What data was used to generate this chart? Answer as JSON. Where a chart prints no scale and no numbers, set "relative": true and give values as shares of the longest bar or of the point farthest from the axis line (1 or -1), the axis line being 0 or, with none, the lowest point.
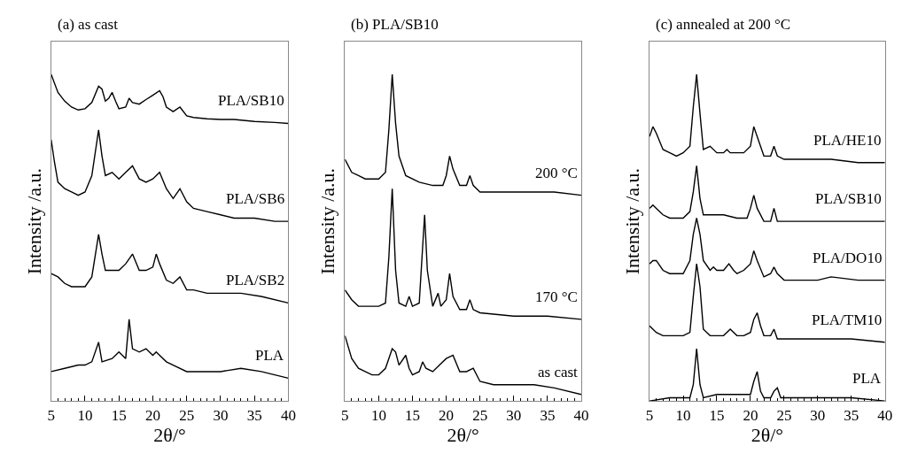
{
  "chart_data": [
    {
      "type": "line",
      "title": "(a) as cast",
      "xlabel": "2θ/°",
      "ylabel": "Intensity /a.u.",
      "relative": true,
      "xlim": [
        5,
        40
      ],
      "xticks": [
        5,
        10,
        15,
        20,
        25,
        30,
        35,
        40
      ],
      "tick_labels": "x",
      "series": [
        {
          "name": "PLA/SB10",
          "color": "#000000",
          "x": [
            5,
            6,
            7,
            8,
            9,
            10,
            11,
            12,
            12.5,
            13,
            13.5,
            14,
            14.5,
            15,
            16,
            16.5,
            17,
            18,
            19,
            20,
            21,
            21.5,
            22,
            23,
            24,
            25,
            26,
            28,
            30,
            32,
            35,
            38,
            40
          ],
          "values": [
            1.0,
            0.945,
            0.918,
            0.9,
            0.891,
            0.895,
            0.914,
            0.964,
            0.955,
            0.918,
            0.927,
            0.945,
            0.918,
            0.895,
            0.9,
            0.927,
            0.914,
            0.909,
            0.923,
            0.936,
            0.95,
            0.932,
            0.9,
            0.886,
            0.9,
            0.873,
            0.868,
            0.864,
            0.862,
            0.862,
            0.856,
            0.853,
            0.85
          ]
        },
        {
          "name": "PLA/SB6",
          "color": "#000000",
          "x": [
            5,
            5.5,
            6,
            7,
            8,
            9,
            10,
            11,
            11.5,
            12,
            12.5,
            13,
            14,
            15,
            16,
            17,
            18,
            19,
            20,
            21,
            22,
            23,
            24,
            25,
            26,
            28,
            30,
            32,
            35,
            38,
            40
          ],
          "values": [
            0.8,
            0.73,
            0.67,
            0.65,
            0.64,
            0.63,
            0.64,
            0.69,
            0.76,
            0.83,
            0.75,
            0.69,
            0.7,
            0.68,
            0.7,
            0.72,
            0.68,
            0.67,
            0.68,
            0.7,
            0.65,
            0.62,
            0.65,
            0.61,
            0.59,
            0.58,
            0.57,
            0.56,
            0.56,
            0.55,
            0.55
          ]
        },
        {
          "name": "PLA/SB2",
          "color": "#000000",
          "x": [
            5,
            6,
            7,
            8,
            9,
            10,
            11,
            12,
            12.5,
            13,
            14,
            15,
            16,
            17,
            18,
            19,
            20,
            20.5,
            21,
            22,
            23,
            24,
            25,
            26,
            28,
            30,
            33,
            36,
            40
          ],
          "values": [
            0.39,
            0.38,
            0.36,
            0.35,
            0.35,
            0.35,
            0.38,
            0.51,
            0.45,
            0.4,
            0.4,
            0.4,
            0.42,
            0.45,
            0.4,
            0.4,
            0.41,
            0.45,
            0.42,
            0.37,
            0.36,
            0.38,
            0.34,
            0.34,
            0.33,
            0.33,
            0.33,
            0.32,
            0.3
          ]
        },
        {
          "name": "PLA",
          "color": "#000000",
          "x": [
            5,
            7,
            9,
            10,
            11,
            12,
            12.5,
            14,
            15,
            16,
            16.5,
            17,
            18,
            19,
            20,
            20.5,
            21,
            22,
            23,
            25,
            27,
            30,
            33,
            36,
            40
          ],
          "values": [
            0.09,
            0.1,
            0.11,
            0.11,
            0.12,
            0.18,
            0.12,
            0.13,
            0.15,
            0.13,
            0.25,
            0.16,
            0.15,
            0.16,
            0.14,
            0.15,
            0.14,
            0.12,
            0.11,
            0.09,
            0.09,
            0.09,
            0.1,
            0.09,
            0.07
          ]
        }
      ]
    },
    {
      "type": "line",
      "title": "(b) PLA/SB10",
      "xlabel": "2θ/°",
      "ylabel": "Intensity /a.u.",
      "relative": true,
      "xlim": [
        5,
        40
      ],
      "xticks": [
        5,
        10,
        15,
        20,
        25,
        30,
        35,
        40
      ],
      "tick_labels": "x",
      "series": [
        {
          "name": "200 °C",
          "color": "#000000",
          "x": [
            5,
            6,
            7,
            8,
            9,
            10,
            11,
            11.5,
            12,
            12.5,
            13,
            14,
            16,
            18,
            19.5,
            20,
            20.5,
            21,
            22,
            23,
            23.5,
            24,
            25,
            28,
            32,
            36,
            40
          ],
          "values": [
            0.74,
            0.7,
            0.69,
            0.68,
            0.68,
            0.68,
            0.7,
            0.83,
            1.0,
            0.85,
            0.75,
            0.69,
            0.67,
            0.66,
            0.66,
            0.69,
            0.75,
            0.71,
            0.66,
            0.66,
            0.69,
            0.66,
            0.64,
            0.64,
            0.64,
            0.64,
            0.63
          ]
        },
        {
          "name": "170 °C",
          "color": "#000000",
          "x": [
            5,
            6,
            7,
            8,
            9,
            10,
            11,
            11.5,
            12,
            12.5,
            13,
            14,
            14.5,
            15,
            16,
            16.5,
            16.8,
            17.2,
            18,
            18.8,
            19.2,
            20,
            20.5,
            21,
            22,
            23,
            23.5,
            24,
            25,
            30,
            35,
            40
          ],
          "values": [
            0.34,
            0.31,
            0.29,
            0.29,
            0.29,
            0.29,
            0.3,
            0.44,
            0.65,
            0.4,
            0.3,
            0.29,
            0.32,
            0.29,
            0.3,
            0.47,
            0.57,
            0.4,
            0.29,
            0.33,
            0.29,
            0.31,
            0.39,
            0.32,
            0.28,
            0.28,
            0.31,
            0.28,
            0.27,
            0.26,
            0.26,
            0.25
          ]
        },
        {
          "name": "as cast",
          "color": "#000000",
          "x": [
            5,
            6,
            7,
            8,
            9,
            10,
            11,
            12,
            12.5,
            13,
            14,
            14.5,
            15,
            16,
            16.5,
            17,
            18,
            19,
            20,
            21,
            22,
            23,
            24,
            25,
            27,
            30,
            33,
            36,
            40
          ],
          "values": [
            0.2,
            0.13,
            0.1,
            0.09,
            0.08,
            0.08,
            0.1,
            0.16,
            0.15,
            0.11,
            0.14,
            0.1,
            0.08,
            0.09,
            0.12,
            0.1,
            0.09,
            0.11,
            0.13,
            0.14,
            0.09,
            0.09,
            0.1,
            0.06,
            0.05,
            0.05,
            0.05,
            0.04,
            0.02
          ]
        }
      ]
    },
    {
      "type": "line",
      "title": "(c) annealed at 200 °C",
      "xlabel": "2θ/°",
      "ylabel": "Intensity /a.u.",
      "relative": true,
      "xlim": [
        5,
        40
      ],
      "xticks": [
        5,
        10,
        15,
        20,
        25,
        30,
        35,
        40
      ],
      "tick_labels": "x",
      "series": [
        {
          "name": "PLA/HE10",
          "color": "#000000",
          "x": [
            5,
            5.5,
            6,
            7,
            8,
            9,
            10,
            11,
            11.5,
            12,
            12.5,
            13,
            14,
            15,
            16,
            16.5,
            17,
            18,
            19,
            20,
            20.5,
            21,
            22,
            23,
            23.5,
            24,
            25,
            28,
            32,
            36,
            40
          ],
          "values": [
            0.81,
            0.84,
            0.82,
            0.77,
            0.76,
            0.75,
            0.76,
            0.78,
            0.9,
            1.0,
            0.88,
            0.77,
            0.78,
            0.76,
            0.76,
            0.77,
            0.76,
            0.76,
            0.76,
            0.78,
            0.84,
            0.81,
            0.75,
            0.75,
            0.78,
            0.75,
            0.74,
            0.74,
            0.74,
            0.73,
            0.73
          ]
        },
        {
          "name": "PLA/SB10",
          "color": "#000000",
          "x": [
            5,
            5.5,
            6,
            7,
            8,
            9,
            10,
            11,
            11.5,
            12,
            12.5,
            13,
            14,
            16,
            18,
            19.5,
            20,
            20.5,
            21,
            22,
            23,
            23.5,
            24,
            25,
            30,
            35,
            40
          ],
          "values": [
            0.59,
            0.6,
            0.59,
            0.57,
            0.56,
            0.56,
            0.56,
            0.58,
            0.64,
            0.72,
            0.62,
            0.57,
            0.57,
            0.57,
            0.56,
            0.56,
            0.59,
            0.63,
            0.59,
            0.55,
            0.55,
            0.59,
            0.55,
            0.55,
            0.55,
            0.55,
            0.55
          ]
        },
        {
          "name": "PLA/DO10",
          "color": "#000000",
          "x": [
            5,
            5.5,
            6,
            7,
            8,
            9,
            10,
            11,
            11.5,
            12,
            12.5,
            13,
            14,
            14.5,
            15,
            16,
            16.8,
            17.5,
            18,
            19,
            20,
            20.5,
            21,
            22,
            23,
            23.5,
            24,
            25,
            30,
            32,
            36,
            40
          ],
          "values": [
            0.42,
            0.43,
            0.43,
            0.4,
            0.39,
            0.39,
            0.39,
            0.43,
            0.51,
            0.56,
            0.51,
            0.43,
            0.4,
            0.41,
            0.4,
            0.4,
            0.42,
            0.4,
            0.39,
            0.4,
            0.42,
            0.46,
            0.43,
            0.38,
            0.39,
            0.41,
            0.39,
            0.37,
            0.37,
            0.38,
            0.37,
            0.37
          ]
        },
        {
          "name": "PLA/TM10",
          "color": "#000000",
          "x": [
            5,
            6,
            7,
            8,
            9,
            10,
            11,
            11.5,
            12,
            12.5,
            13,
            14,
            16,
            17,
            18,
            19,
            20,
            20.5,
            21,
            21.5,
            22,
            23,
            23.5,
            24,
            25,
            30,
            35,
            40
          ],
          "values": [
            0.23,
            0.21,
            0.2,
            0.2,
            0.2,
            0.2,
            0.21,
            0.32,
            0.42,
            0.35,
            0.22,
            0.2,
            0.2,
            0.22,
            0.2,
            0.2,
            0.21,
            0.25,
            0.27,
            0.23,
            0.2,
            0.2,
            0.22,
            0.19,
            0.19,
            0.19,
            0.19,
            0.18
          ]
        },
        {
          "name": "PLA",
          "color": "#000000",
          "x": [
            5,
            8,
            10,
            11,
            11.5,
            12,
            12.5,
            13,
            15,
            18,
            20,
            20.5,
            21,
            21.5,
            22,
            23,
            23.5,
            24,
            24.5,
            25,
            30,
            32,
            35,
            40
          ],
          "values": [
            0.0,
            0.01,
            0.01,
            0.01,
            0.05,
            0.16,
            0.05,
            0.01,
            0.02,
            0.02,
            0.02,
            0.06,
            0.09,
            0.03,
            0.01,
            0.01,
            0.03,
            0.04,
            0.01,
            0.01,
            0.01,
            0.01,
            0.01,
            0.0
          ]
        }
      ]
    }
  ]
}
